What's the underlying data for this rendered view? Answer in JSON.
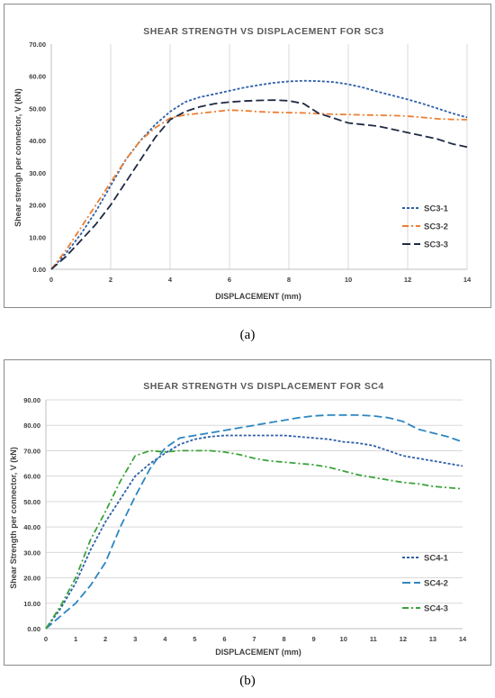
{
  "chart_data": [
    {
      "type": "line",
      "panel_label": "(a)",
      "title": "SHEAR STRENGTH VS DISPLACEMENT FOR SC3",
      "xlabel": "DISPLACEMENT (mm)",
      "ylabel": "Shear strengh per connector, V (kN)",
      "xlim": [
        0,
        14
      ],
      "ylim": [
        0,
        70
      ],
      "x_ticks": [
        "0",
        "2",
        "4",
        "6",
        "8",
        "10",
        "12",
        "14"
      ],
      "y_ticks": [
        "0.00",
        "10.00",
        "20.00",
        "30.00",
        "40.00",
        "50.00",
        "60.00",
        "70.00"
      ],
      "grid": "vertical",
      "legend_position": "right",
      "series": [
        {
          "name": "SC3-1",
          "color": "#2e5fa8",
          "dash": "short-dash",
          "x": [
            0,
            0.5,
            1,
            1.5,
            2,
            2.5,
            3,
            3.5,
            4,
            4.5,
            5,
            5.5,
            6,
            6.5,
            7,
            7.5,
            8,
            8.5,
            9,
            9.5,
            10,
            10.5,
            11,
            11.5,
            12,
            12.5,
            13,
            13.5,
            14
          ],
          "y": [
            0,
            5,
            11,
            18,
            26,
            34,
            40,
            45,
            49,
            52,
            53.5,
            54.5,
            55.5,
            56.5,
            57.3,
            58,
            58.4,
            58.6,
            58.5,
            58.2,
            57.5,
            56.5,
            55.2,
            54,
            52.8,
            51.5,
            50,
            48.5,
            47.2
          ]
        },
        {
          "name": "SC3-2",
          "color": "#ed7d31",
          "dash": "dash-dot",
          "x": [
            0,
            0.5,
            1,
            1.5,
            2,
            2.5,
            3,
            3.5,
            4,
            4.5,
            5,
            5.5,
            6,
            6.5,
            7,
            7.5,
            8,
            8.5,
            9,
            9.5,
            10,
            10.5,
            11,
            11.5,
            12,
            12.5,
            13,
            13.5,
            14
          ],
          "y": [
            0,
            6,
            13,
            20,
            27,
            34,
            40,
            44,
            47,
            48,
            48.5,
            49,
            49.5,
            49.3,
            49,
            48.8,
            48.7,
            48.6,
            48.4,
            48.2,
            48.1,
            48,
            47.9,
            47.8,
            47.6,
            47.2,
            46.8,
            46.6,
            46.5
          ]
        },
        {
          "name": "SC3-3",
          "color": "#1f2a44",
          "dash": "long-dash",
          "x": [
            0,
            0.5,
            1,
            1.5,
            2,
            2.5,
            3,
            3.5,
            4,
            4.5,
            5,
            5.5,
            6,
            6.5,
            7,
            7.5,
            8,
            8.5,
            9,
            9.5,
            10,
            10.5,
            11,
            11.5,
            12,
            12.5,
            13,
            13.5,
            14
          ],
          "y": [
            0,
            4,
            9,
            14,
            20,
            27,
            34,
            41,
            46.5,
            49,
            50.5,
            51.5,
            52,
            52.3,
            52.5,
            52.6,
            52.4,
            51.5,
            48.5,
            47,
            45.5,
            45,
            44.5,
            43.5,
            42.5,
            41.5,
            40.5,
            39,
            38
          ]
        }
      ]
    },
    {
      "type": "line",
      "panel_label": "(b)",
      "title": "SHEAR STRENGTH VS DISPLACEMENT FOR SC4",
      "xlabel": "DISPLACEMENT (mm)",
      "ylabel": "Shear Strength per connector, V (kN)",
      "xlim": [
        0,
        14
      ],
      "ylim": [
        0,
        90
      ],
      "x_ticks": [
        "0",
        "1",
        "2",
        "3",
        "4",
        "5",
        "6",
        "7",
        "8",
        "9",
        "10",
        "11",
        "12",
        "13",
        "14"
      ],
      "y_ticks": [
        "0.00",
        "10.00",
        "20.00",
        "30.00",
        "40.00",
        "50.00",
        "60.00",
        "70.00",
        "80.00",
        "90.00"
      ],
      "grid": "horizontal",
      "legend_position": "right",
      "series": [
        {
          "name": "SC4-1",
          "color": "#2e5fa8",
          "dash": "short-dash",
          "x": [
            0,
            0.5,
            1,
            1.5,
            2,
            2.5,
            3,
            3.5,
            4,
            4.5,
            5,
            5.5,
            6,
            6.5,
            7,
            7.5,
            8,
            8.5,
            9,
            9.5,
            10,
            10.5,
            11,
            11.5,
            12,
            12.5,
            13,
            13.5,
            14
          ],
          "y": [
            0,
            8,
            18,
            31,
            42,
            51,
            60,
            65,
            69,
            72.5,
            74.5,
            75.5,
            76,
            76,
            76,
            76,
            76,
            75.5,
            75,
            74.5,
            73.5,
            73,
            72,
            70,
            68,
            67,
            66,
            65,
            64
          ]
        },
        {
          "name": "SC4-2",
          "color": "#2e86c1",
          "dash": "long-dash",
          "x": [
            0,
            0.5,
            1,
            1.5,
            2,
            2.5,
            3,
            3.5,
            4,
            4.5,
            5,
            5.5,
            6,
            6.5,
            7,
            7.5,
            8,
            8.5,
            9,
            9.5,
            10,
            10.5,
            11,
            11.5,
            12,
            12.5,
            13,
            13.5,
            14
          ],
          "y": [
            0,
            5,
            10,
            17,
            26,
            40,
            52,
            63,
            71,
            75,
            76,
            77,
            78,
            79,
            80,
            81,
            82,
            83,
            83.7,
            84,
            84,
            84,
            83.7,
            83,
            81.5,
            78.5,
            77,
            75.5,
            73.5
          ]
        },
        {
          "name": "SC4-3",
          "color": "#3aa33a",
          "dash": "dash-dot",
          "x": [
            0,
            0.5,
            1,
            1.5,
            2,
            2.5,
            3,
            3.5,
            4,
            4.5,
            5,
            5.5,
            6,
            6.5,
            7,
            7.5,
            8,
            8.5,
            9,
            9.5,
            10,
            10.5,
            11,
            11.5,
            12,
            12.5,
            13,
            13.5,
            14
          ],
          "y": [
            0,
            9,
            20,
            35,
            46,
            58,
            68,
            70,
            69.5,
            70,
            70,
            70,
            69.5,
            68.5,
            67,
            66,
            65.5,
            65,
            64.5,
            63.5,
            62,
            60.5,
            59.5,
            58.5,
            57.5,
            57,
            56,
            55.5,
            55
          ]
        }
      ]
    }
  ]
}
